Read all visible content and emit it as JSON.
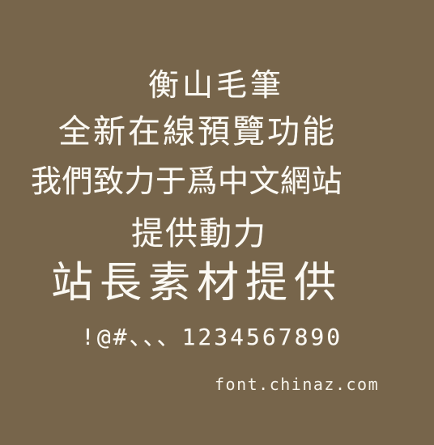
{
  "preview": {
    "background_color": "#77654b",
    "text_color": "#fbf9f3",
    "lines": [
      "衡山毛筆",
      "全新在線預覽功能",
      "我們致力于爲中文網站",
      "提供動力",
      "站長素材提供",
      "!@#、、、1234567890"
    ],
    "watermark": "font.chinaz.com"
  }
}
